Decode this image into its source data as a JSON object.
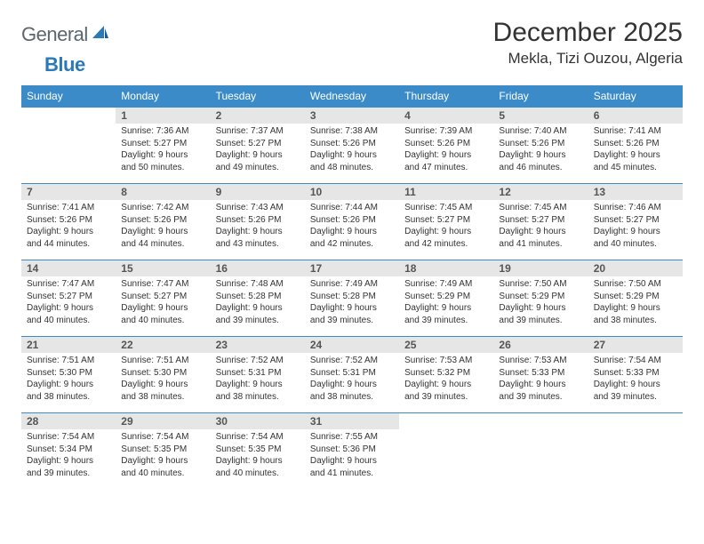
{
  "brand": {
    "part1": "General",
    "part2": "Blue"
  },
  "title": "December 2025",
  "location": "Mekla, Tizi Ouzou, Algeria",
  "colors": {
    "header_bg": "#3b8bc8",
    "header_text": "#ffffff",
    "daynum_bg": "#e6e6e6",
    "daynum_text": "#555555",
    "body_text": "#333333",
    "rule": "#3b8bc8",
    "page_bg": "#ffffff",
    "logo_gray": "#5a6670",
    "logo_blue": "#2a7ab8"
  },
  "weekdays": [
    "Sunday",
    "Monday",
    "Tuesday",
    "Wednesday",
    "Thursday",
    "Friday",
    "Saturday"
  ],
  "weeks": [
    [
      null,
      {
        "n": "1",
        "sunrise": "7:36 AM",
        "sunset": "5:27 PM",
        "day_h": "9",
        "day_m": "50"
      },
      {
        "n": "2",
        "sunrise": "7:37 AM",
        "sunset": "5:27 PM",
        "day_h": "9",
        "day_m": "49"
      },
      {
        "n": "3",
        "sunrise": "7:38 AM",
        "sunset": "5:26 PM",
        "day_h": "9",
        "day_m": "48"
      },
      {
        "n": "4",
        "sunrise": "7:39 AM",
        "sunset": "5:26 PM",
        "day_h": "9",
        "day_m": "47"
      },
      {
        "n": "5",
        "sunrise": "7:40 AM",
        "sunset": "5:26 PM",
        "day_h": "9",
        "day_m": "46"
      },
      {
        "n": "6",
        "sunrise": "7:41 AM",
        "sunset": "5:26 PM",
        "day_h": "9",
        "day_m": "45"
      }
    ],
    [
      {
        "n": "7",
        "sunrise": "7:41 AM",
        "sunset": "5:26 PM",
        "day_h": "9",
        "day_m": "44"
      },
      {
        "n": "8",
        "sunrise": "7:42 AM",
        "sunset": "5:26 PM",
        "day_h": "9",
        "day_m": "44"
      },
      {
        "n": "9",
        "sunrise": "7:43 AM",
        "sunset": "5:26 PM",
        "day_h": "9",
        "day_m": "43"
      },
      {
        "n": "10",
        "sunrise": "7:44 AM",
        "sunset": "5:26 PM",
        "day_h": "9",
        "day_m": "42"
      },
      {
        "n": "11",
        "sunrise": "7:45 AM",
        "sunset": "5:27 PM",
        "day_h": "9",
        "day_m": "42"
      },
      {
        "n": "12",
        "sunrise": "7:45 AM",
        "sunset": "5:27 PM",
        "day_h": "9",
        "day_m": "41"
      },
      {
        "n": "13",
        "sunrise": "7:46 AM",
        "sunset": "5:27 PM",
        "day_h": "9",
        "day_m": "40"
      }
    ],
    [
      {
        "n": "14",
        "sunrise": "7:47 AM",
        "sunset": "5:27 PM",
        "day_h": "9",
        "day_m": "40"
      },
      {
        "n": "15",
        "sunrise": "7:47 AM",
        "sunset": "5:27 PM",
        "day_h": "9",
        "day_m": "40"
      },
      {
        "n": "16",
        "sunrise": "7:48 AM",
        "sunset": "5:28 PM",
        "day_h": "9",
        "day_m": "39"
      },
      {
        "n": "17",
        "sunrise": "7:49 AM",
        "sunset": "5:28 PM",
        "day_h": "9",
        "day_m": "39"
      },
      {
        "n": "18",
        "sunrise": "7:49 AM",
        "sunset": "5:29 PM",
        "day_h": "9",
        "day_m": "39"
      },
      {
        "n": "19",
        "sunrise": "7:50 AM",
        "sunset": "5:29 PM",
        "day_h": "9",
        "day_m": "39"
      },
      {
        "n": "20",
        "sunrise": "7:50 AM",
        "sunset": "5:29 PM",
        "day_h": "9",
        "day_m": "38"
      }
    ],
    [
      {
        "n": "21",
        "sunrise": "7:51 AM",
        "sunset": "5:30 PM",
        "day_h": "9",
        "day_m": "38"
      },
      {
        "n": "22",
        "sunrise": "7:51 AM",
        "sunset": "5:30 PM",
        "day_h": "9",
        "day_m": "38"
      },
      {
        "n": "23",
        "sunrise": "7:52 AM",
        "sunset": "5:31 PM",
        "day_h": "9",
        "day_m": "38"
      },
      {
        "n": "24",
        "sunrise": "7:52 AM",
        "sunset": "5:31 PM",
        "day_h": "9",
        "day_m": "38"
      },
      {
        "n": "25",
        "sunrise": "7:53 AM",
        "sunset": "5:32 PM",
        "day_h": "9",
        "day_m": "39"
      },
      {
        "n": "26",
        "sunrise": "7:53 AM",
        "sunset": "5:33 PM",
        "day_h": "9",
        "day_m": "39"
      },
      {
        "n": "27",
        "sunrise": "7:54 AM",
        "sunset": "5:33 PM",
        "day_h": "9",
        "day_m": "39"
      }
    ],
    [
      {
        "n": "28",
        "sunrise": "7:54 AM",
        "sunset": "5:34 PM",
        "day_h": "9",
        "day_m": "39"
      },
      {
        "n": "29",
        "sunrise": "7:54 AM",
        "sunset": "5:35 PM",
        "day_h": "9",
        "day_m": "40"
      },
      {
        "n": "30",
        "sunrise": "7:54 AM",
        "sunset": "5:35 PM",
        "day_h": "9",
        "day_m": "40"
      },
      {
        "n": "31",
        "sunrise": "7:55 AM",
        "sunset": "5:36 PM",
        "day_h": "9",
        "day_m": "41"
      },
      null,
      null,
      null
    ]
  ]
}
